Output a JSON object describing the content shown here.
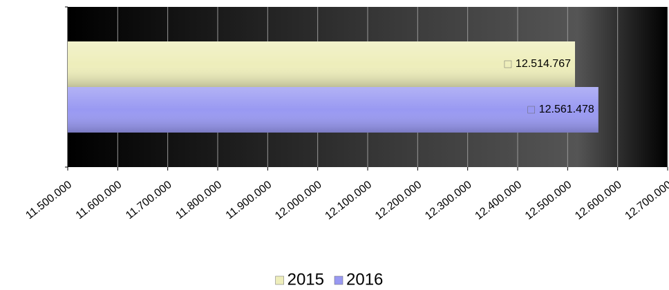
{
  "chart_data": {
    "type": "bar",
    "orientation": "horizontal",
    "categories": [
      null
    ],
    "series": [
      {
        "name": "2015",
        "color": "#eeeebb",
        "values": [
          12514767
        ],
        "value_labels": [
          "12.514.767"
        ]
      },
      {
        "name": "2016",
        "color": "#9999f2",
        "values": [
          12561478
        ],
        "value_labels": [
          "12.561.478"
        ]
      }
    ],
    "xlim": [
      11500000,
      12700000
    ],
    "xticks": [
      {
        "value": 11500000,
        "label": "11.500.000"
      },
      {
        "value": 11600000,
        "label": "11.600.000"
      },
      {
        "value": 11700000,
        "label": "11.700.000"
      },
      {
        "value": 11800000,
        "label": "11.800.000"
      },
      {
        "value": 11900000,
        "label": "11.900.000"
      },
      {
        "value": 12000000,
        "label": "12.000.000"
      },
      {
        "value": 12100000,
        "label": "12.100.000"
      },
      {
        "value": 12200000,
        "label": "12.200.000"
      },
      {
        "value": 12300000,
        "label": "12.300.000"
      },
      {
        "value": 12400000,
        "label": "12.400.000"
      },
      {
        "value": 12500000,
        "label": "12.500.000"
      },
      {
        "value": 12600000,
        "label": "12.600.000"
      },
      {
        "value": 12700000,
        "label": "12.700.000"
      }
    ],
    "grid": true,
    "legend": "bottom"
  }
}
